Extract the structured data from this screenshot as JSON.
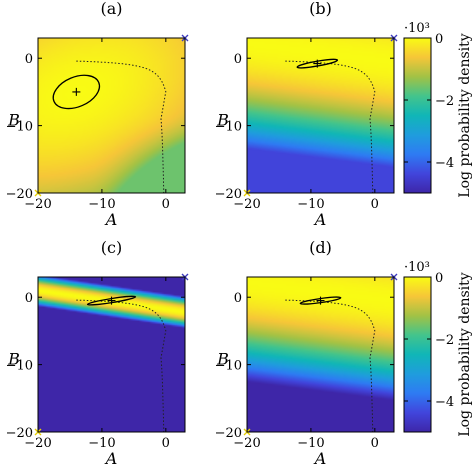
{
  "figure": {
    "colorbar": {
      "label": "Log probability density",
      "multiplier": "·10³",
      "ticks": [
        "0",
        "−2",
        "−4"
      ],
      "tick_values": [
        0,
        -2,
        -4
      ],
      "range": [
        -5,
        0
      ],
      "colormap": "parula"
    }
  },
  "chart_data": [
    {
      "type": "heatmap",
      "title": "(a)",
      "xlabel": "A",
      "ylabel": "B",
      "xlim": [
        -20,
        3
      ],
      "ylim": [
        -20,
        3
      ],
      "xticks": [
        "−20",
        "−10",
        "0"
      ],
      "xtick_values": [
        -20,
        -10,
        0
      ],
      "yticks": [
        "0",
        "−10",
        "−20"
      ],
      "ytick_values": [
        0,
        -10,
        -20
      ],
      "density_min": -1.6,
      "mode": [
        -14,
        -5
      ],
      "contour_center": [
        -14,
        -5
      ],
      "contour_semi_axes": [
        3.8,
        2.2
      ],
      "contour_angle_deg": 23,
      "dotted_boundary": true,
      "corner_markers": [
        [
          3,
          3
        ],
        [
          -20,
          -20
        ]
      ]
    },
    {
      "type": "heatmap",
      "title": "(b)",
      "xlabel": "A",
      "ylabel": "B",
      "xlim": [
        -20,
        3
      ],
      "ylim": [
        -20,
        3
      ],
      "xticks": [
        "−20",
        "−10",
        "0"
      ],
      "xtick_values": [
        -20,
        -10,
        0
      ],
      "yticks": [
        "0",
        "−10",
        "−20"
      ],
      "ytick_values": [
        0,
        -10,
        -20
      ],
      "density_min": -4.4,
      "mode": [
        -9,
        -0.8
      ],
      "contour_center": [
        -9,
        -0.8
      ],
      "contour_semi_axes": [
        3.2,
        0.35
      ],
      "contour_angle_deg": 10,
      "dotted_boundary": true,
      "corner_markers": [
        [
          3,
          3
        ],
        [
          -20,
          -20
        ]
      ]
    },
    {
      "type": "heatmap",
      "title": "(c)",
      "xlabel": "A",
      "ylabel": "B",
      "xlim": [
        -20,
        3
      ],
      "ylim": [
        -20,
        3
      ],
      "xticks": [
        "−20",
        "−10",
        "0"
      ],
      "xtick_values": [
        -20,
        -10,
        0
      ],
      "yticks": [
        "0",
        "−10",
        "−20"
      ],
      "ytick_values": [
        0,
        -10,
        -20
      ],
      "density_min": -5,
      "mode": [
        -8.5,
        -0.5
      ],
      "contour_center": [
        -8.5,
        -0.5
      ],
      "contour_semi_axes": [
        3.8,
        0.3
      ],
      "contour_angle_deg": 9,
      "dotted_boundary": true,
      "corner_markers": [
        [
          3,
          3
        ],
        [
          -20,
          -20
        ]
      ]
    },
    {
      "type": "heatmap",
      "title": "(d)",
      "xlabel": "A",
      "ylabel": "B",
      "xlim": [
        -20,
        3
      ],
      "ylim": [
        -20,
        3
      ],
      "xticks": [
        "−20",
        "−10",
        "0"
      ],
      "xtick_values": [
        -20,
        -10,
        0
      ],
      "yticks": [
        "0",
        "−10",
        "−20"
      ],
      "ytick_values": [
        0,
        -10,
        -20
      ],
      "density_min": -5,
      "mode": [
        -8.5,
        -0.5
      ],
      "contour_center": [
        -8.5,
        -0.5
      ],
      "contour_semi_axes": [
        3.2,
        0.3
      ],
      "contour_angle_deg": 8,
      "dotted_boundary": true,
      "corner_markers": [
        [
          3,
          3
        ],
        [
          -20,
          -20
        ]
      ]
    }
  ]
}
